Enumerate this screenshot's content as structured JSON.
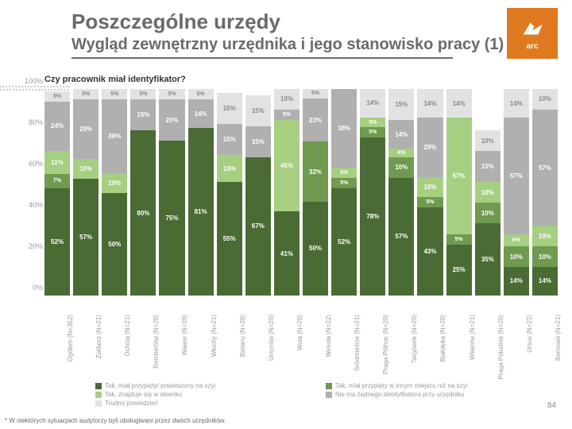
{
  "header": {
    "title_main": "Poszczególne urzędy",
    "title_sub": "Wygląd zewnętrzny urzędnika i jego stanowisko pracy (1)",
    "logo_text": "arc"
  },
  "question": "Czy pracownik miał identyfikator?",
  "yaxis": {
    "ticks": [
      "0%",
      "20%",
      "40%",
      "60%",
      "80%",
      "100%"
    ],
    "max": 100
  },
  "colors": {
    "s1": "#4a6b34",
    "s2": "#6f9a4f",
    "s3": "#a6cf82",
    "s4": "#c9e3b3",
    "s5": "#b0b0b0",
    "s6": "#e2e2e2",
    "bg": "#ffffff",
    "text_gray": "#9a9a9a"
  },
  "legend": [
    {
      "color": "#4a6b34",
      "label": "Tak, miał przypięty/ powieszony na szyi"
    },
    {
      "color": "#6f9a4f",
      "label": "Tak, miał przypięty w innym miejscu niż na szyi"
    },
    {
      "color": "#a6cf82",
      "label": "Tak, znajduje się w okienku"
    },
    {
      "color": "#b0b0b0",
      "label": "Nie ma żadnego identyfikatora przy urzędniku"
    },
    {
      "color": "#e2e2e2",
      "label": "Trudno powiedzieć"
    }
  ],
  "categories": [
    {
      "label": "Ogółem (N=352)",
      "values": [
        52,
        7,
        11,
        24,
        5
      ],
      "show_s4": false
    },
    {
      "label": "Żoliborz (N=21)",
      "values": [
        57,
        0,
        10,
        29,
        5
      ],
      "show_s4": false
    },
    {
      "label": "Ochota (N=21)",
      "values": [
        50,
        0,
        10,
        36,
        5
      ],
      "show_s4": false
    },
    {
      "label": "Rembertów (N=20)",
      "values": [
        80,
        0,
        0,
        15,
        5
      ],
      "show_s4": false
    },
    {
      "label": "Wawer (N=20)",
      "values": [
        75,
        0,
        0,
        20,
        5
      ],
      "show_s4": false
    },
    {
      "label": "Włochy (N=21)",
      "values": [
        81,
        0,
        0,
        14,
        5
      ],
      "show_s4": false
    },
    {
      "label": "Bielany (N=20)",
      "values": [
        55,
        0,
        13,
        15,
        15
      ],
      "show_s4": false
    },
    {
      "label": "Ursynów (N=20)",
      "values": [
        67,
        0,
        0,
        15,
        15
      ],
      "show_s4": false
    },
    {
      "label": "Wola (N=20)",
      "values": [
        41,
        0,
        45,
        5,
        10
      ],
      "show_s4": false
    },
    {
      "label": "Wesoła (N=22)",
      "values": [
        50,
        32,
        0,
        23,
        5
      ],
      "show_s4": false
    },
    {
      "label": "Śródmieście (N=21)",
      "values": [
        52,
        5,
        5,
        38,
        0
      ],
      "show_s4": false
    },
    {
      "label": "Praga Północ (N=20)",
      "values": [
        78,
        5,
        5,
        0,
        14
      ],
      "show_s4": false
    },
    {
      "label": "Targówek (N=20)",
      "values": [
        57,
        10,
        4,
        14,
        15
      ],
      "show_s4": true
    },
    {
      "label": "Białołęka (N=20)",
      "values": [
        43,
        5,
        10,
        29,
        14
      ],
      "show_s4": false
    },
    {
      "label": "Wilanów (N=21)",
      "values": [
        25,
        5,
        57,
        0,
        14
      ],
      "show_s4": false
    },
    {
      "label": "Praga Południe (N=20)",
      "values": [
        35,
        10,
        10,
        15,
        10
      ],
      "show_s4": true
    },
    {
      "label": "Ursus (N=22)",
      "values": [
        14,
        10,
        6,
        57,
        14
      ],
      "show_s4": false
    },
    {
      "label": "Bemowo (N=21)",
      "values": [
        14,
        10,
        10,
        57,
        10
      ],
      "show_s4": false
    }
  ],
  "footnote": "* W niektórych sytuacjach audytorzy byli obsługiwani przez dwóch urzędników.",
  "pagenum": "84"
}
